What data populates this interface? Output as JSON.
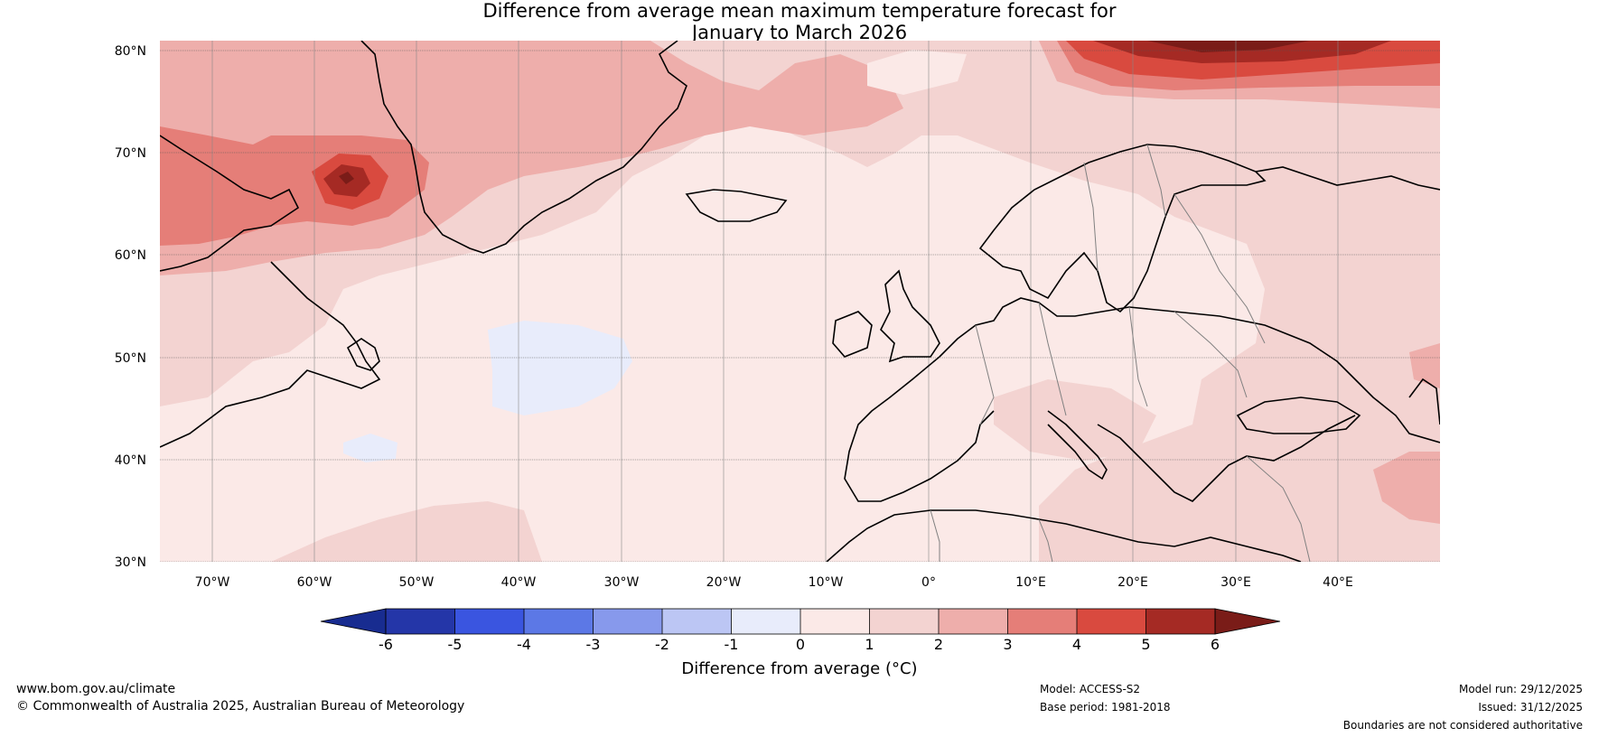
{
  "title": {
    "line1": "Difference from average mean maximum temperature forecast for",
    "line2": "January to March 2026"
  },
  "map": {
    "lat_labels": [
      "80°N",
      "70°N",
      "60°N",
      "50°N",
      "40°N",
      "30°N"
    ],
    "lon_labels": [
      "70°W",
      "60°W",
      "50°W",
      "40°W",
      "30°W",
      "20°W",
      "10°W",
      "0°",
      "10°E",
      "20°E",
      "30°E",
      "40°E"
    ],
    "background_color": "#fbe9e7"
  },
  "colorbar": {
    "ticks": [
      "-6",
      "-5",
      "-4",
      "-3",
      "-2",
      "-1",
      "0",
      "1",
      "2",
      "3",
      "4",
      "5",
      "6"
    ],
    "colors": [
      "#2436a8",
      "#3a55e0",
      "#5c78e6",
      "#8799ec",
      "#bcc6f4",
      "#e8ecfb",
      "#fbe9e7",
      "#f3d3d1",
      "#eeaeab",
      "#e57e78",
      "#d94a3f",
      "#a52a24"
    ],
    "under_color": "#182c90",
    "over_color": "#7a1c18",
    "label": "Difference from average (°C)"
  },
  "footer": {
    "website": "www.bom.gov.au/climate",
    "copyright": "© Commonwealth of Australia 2025, Australian Bureau of Meteorology",
    "model": "Model: ACCESS-S2",
    "base_period": "Base period: 1981-2018",
    "model_run": "Model run: 29/12/2025",
    "issued": "Issued: 31/12/2025",
    "disclaimer": "Boundaries are not considered authoritative"
  }
}
